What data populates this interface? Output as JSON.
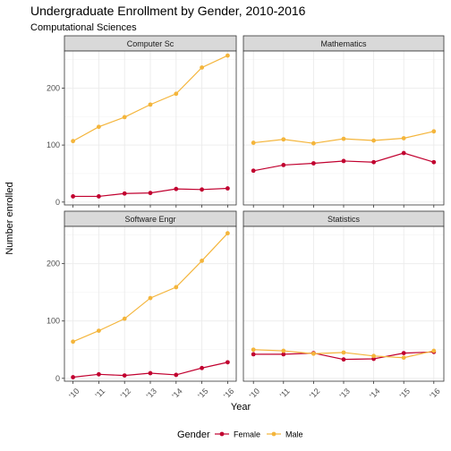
{
  "chart_data": {
    "type": "line",
    "title": "Undergraduate Enrollment by Gender, 2010-2016",
    "subtitle": "Computational Sciences",
    "xlabel": "Year",
    "ylabel": "Number enrolled",
    "x": [
      "'10",
      "'11",
      "'12",
      "'13",
      "'14",
      "'15",
      "'16"
    ],
    "ylim": [
      -5,
      265
    ],
    "yticks": [
      0,
      100,
      200
    ],
    "grid": true,
    "legend": {
      "title": "Gender",
      "position": "bottom",
      "entries": [
        "Female",
        "Male"
      ]
    },
    "series_colors": {
      "Female": "#c1002f",
      "Male": "#f4b53b"
    },
    "panels": [
      {
        "name": "Computer Sc",
        "series": [
          {
            "name": "Female",
            "values": [
              10,
              10,
              15,
              16,
              23,
              22,
              24
            ]
          },
          {
            "name": "Male",
            "values": [
              107,
              132,
              149,
              171,
              190,
              236,
              257
            ]
          }
        ]
      },
      {
        "name": "Mathematics",
        "series": [
          {
            "name": "Female",
            "values": [
              55,
              65,
              68,
              72,
              70,
              86,
              70
            ]
          },
          {
            "name": "Male",
            "values": [
              104,
              110,
              103,
              111,
              108,
              112,
              124
            ]
          }
        ]
      },
      {
        "name": "Software Engr",
        "series": [
          {
            "name": "Female",
            "values": [
              2,
              7,
              5,
              9,
              6,
              18,
              28
            ]
          },
          {
            "name": "Male",
            "values": [
              64,
              83,
              104,
              140,
              159,
              205,
              253
            ]
          }
        ]
      },
      {
        "name": "Statistics",
        "series": [
          {
            "name": "Female",
            "values": [
              42,
              42,
              44,
              33,
              34,
              44,
              46
            ]
          },
          {
            "name": "Male",
            "values": [
              50,
              48,
              43,
              45,
              39,
              36,
              48
            ]
          }
        ]
      }
    ]
  }
}
